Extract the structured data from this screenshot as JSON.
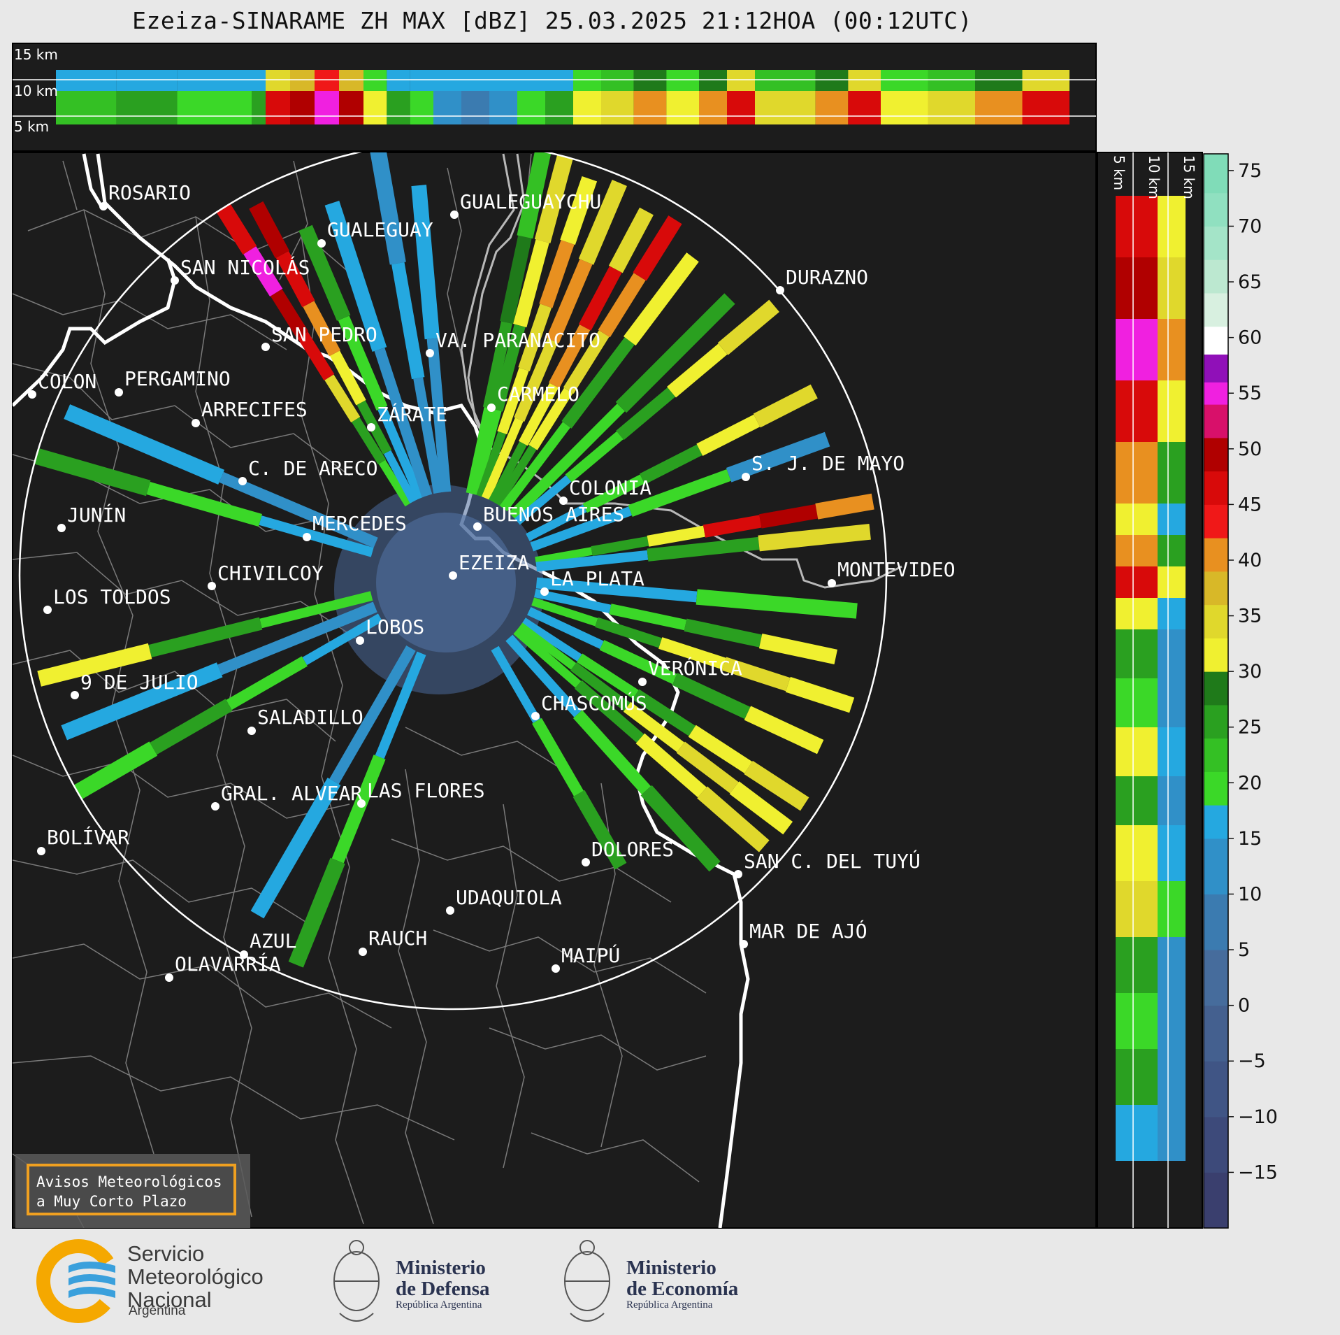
{
  "title": "Ezeiza-SINARAME ZH MAX [dBZ] 25.03.2025 21:12HOA (00:12UTC)",
  "top_panel_labels": [
    "15 km",
    "10 km",
    "5 km"
  ],
  "side_panel_labels": [
    "5 km",
    "10 km",
    "15 km"
  ],
  "colorbar": {
    "unit": "dBZ",
    "ticks": [
      "75",
      "70",
      "65",
      "60",
      "55",
      "50",
      "45",
      "40",
      "35",
      "30",
      "25",
      "20",
      "15",
      "10",
      "5",
      "0",
      "−5",
      "−10",
      "−15"
    ],
    "min": -20,
    "max": 76.5,
    "bands": [
      {
        "from": -20,
        "to": -15,
        "color": "#3a3f6e"
      },
      {
        "from": -15,
        "to": -10,
        "color": "#3d4a7a"
      },
      {
        "from": -10,
        "to": -5,
        "color": "#405585"
      },
      {
        "from": -5,
        "to": 0,
        "color": "#44608f"
      },
      {
        "from": 0,
        "to": 5,
        "color": "#466c9c"
      },
      {
        "from": 5,
        "to": 10,
        "color": "#3b7bb0"
      },
      {
        "from": 10,
        "to": 15,
        "color": "#3090c8"
      },
      {
        "from": 15,
        "to": 18,
        "color": "#25a8e0"
      },
      {
        "from": 18,
        "to": 21,
        "color": "#3bd828"
      },
      {
        "from": 21,
        "to": 24,
        "color": "#34c024"
      },
      {
        "from": 24,
        "to": 27,
        "color": "#2aa020"
      },
      {
        "from": 27,
        "to": 30,
        "color": "#1f7a1a"
      },
      {
        "from": 30,
        "to": 33,
        "color": "#f0f030"
      },
      {
        "from": 33,
        "to": 36,
        "color": "#e0d82c"
      },
      {
        "from": 36,
        "to": 39,
        "color": "#d8b828"
      },
      {
        "from": 39,
        "to": 42,
        "color": "#e89020"
      },
      {
        "from": 42,
        "to": 45,
        "color": "#f01818"
      },
      {
        "from": 45,
        "to": 48,
        "color": "#d80a0a"
      },
      {
        "from": 48,
        "to": 51,
        "color": "#b00000"
      },
      {
        "from": 51,
        "to": 54,
        "color": "#d8106a"
      },
      {
        "from": 54,
        "to": 56,
        "color": "#f020e0"
      },
      {
        "from": 56,
        "to": 58.5,
        "color": "#9010b8"
      },
      {
        "from": 58.5,
        "to": 61,
        "color": "#ffffff"
      },
      {
        "from": 61,
        "to": 64,
        "color": "#d8f0e0"
      },
      {
        "from": 64,
        "to": 67,
        "color": "#bce8d0"
      },
      {
        "from": 67,
        "to": 70,
        "color": "#a4e4c8"
      },
      {
        "from": 70,
        "to": 73,
        "color": "#90e0c0"
      },
      {
        "from": 73,
        "to": 76.5,
        "color": "#80dcb8"
      }
    ]
  },
  "map": {
    "background": "#1c1c1c",
    "range_ring": "#ffffff",
    "radar_site": "EZEIZA",
    "cities": [
      {
        "name": "ROSARIO",
        "dot": [
          148,
          295
        ],
        "label": [
          155,
          285
        ]
      },
      {
        "name": "GUALEGUAYCHU",
        "dot": [
          650,
          307
        ],
        "label": [
          658,
          298
        ]
      },
      {
        "name": "GUALEGUAY",
        "dot": [
          460,
          348
        ],
        "label": [
          468,
          338
        ]
      },
      {
        "name": "SAN NICOLÁS",
        "dot": [
          250,
          401
        ],
        "label": [
          258,
          392
        ]
      },
      {
        "name": "DURAZNO",
        "dot": [
          1116,
          415
        ],
        "label": [
          1124,
          406
        ]
      },
      {
        "name": "SAN PEDRO",
        "dot": [
          380,
          496
        ],
        "label": [
          388,
          488
        ]
      },
      {
        "name": "VA. PARANACITO",
        "dot": [
          615,
          505
        ],
        "label": [
          623,
          496
        ]
      },
      {
        "name": "COLON",
        "dot": [
          46,
          564
        ],
        "label": [
          54,
          555
        ]
      },
      {
        "name": "PERGAMINO",
        "dot": [
          170,
          561
        ],
        "label": [
          178,
          551
        ]
      },
      {
        "name": "CARMELO",
        "dot": [
          703,
          583
        ],
        "label": [
          711,
          573
        ]
      },
      {
        "name": "ARRECIFES",
        "dot": [
          280,
          605
        ],
        "label": [
          288,
          595
        ]
      },
      {
        "name": "ZÁRATE",
        "dot": [
          531,
          611
        ],
        "label": [
          539,
          602
        ]
      },
      {
        "name": "C. DE ARECO",
        "dot": [
          347,
          688
        ],
        "label": [
          355,
          679
        ]
      },
      {
        "name": "S. J. DE MAYO",
        "dot": [
          1067,
          682
        ],
        "label": [
          1075,
          672
        ]
      },
      {
        "name": "COLONIA",
        "dot": [
          806,
          716
        ],
        "label": [
          814,
          707
        ]
      },
      {
        "name": "BUENOS AIRES",
        "dot": [
          683,
          753
        ],
        "label": [
          691,
          745
        ]
      },
      {
        "name": "JUNÍN",
        "dot": [
          88,
          755
        ],
        "label": [
          96,
          746
        ]
      },
      {
        "name": "MERCEDES",
        "dot": [
          439,
          768
        ],
        "label": [
          447,
          758
        ]
      },
      {
        "name": "EZEIZA",
        "dot": [
          648,
          823
        ],
        "label": [
          656,
          814
        ]
      },
      {
        "name": "MONTEVIDEO",
        "dot": [
          1190,
          834
        ],
        "label": [
          1198,
          824
        ]
      },
      {
        "name": "CHIVILCOY",
        "dot": [
          303,
          838
        ],
        "label": [
          311,
          829
        ]
      },
      {
        "name": "LA PLATA",
        "dot": [
          779,
          846
        ],
        "label": [
          787,
          837
        ]
      },
      {
        "name": "LOS TOLDOS",
        "dot": [
          68,
          872
        ],
        "label": [
          76,
          863
        ]
      },
      {
        "name": "LOBOS",
        "dot": [
          515,
          916
        ],
        "label": [
          523,
          906
        ]
      },
      {
        "name": "VERÓNICA",
        "dot": [
          919,
          975
        ],
        "label": [
          927,
          965
        ]
      },
      {
        "name": "9 DE JULIO",
        "dot": [
          107,
          994
        ],
        "label": [
          115,
          985
        ]
      },
      {
        "name": "CHASCOMÚS",
        "dot": [
          766,
          1024
        ],
        "label": [
          774,
          1015
        ]
      },
      {
        "name": "SALADILLO",
        "dot": [
          360,
          1045
        ],
        "label": [
          368,
          1035
        ]
      },
      {
        "name": "GRAL. ALVEAR",
        "dot": [
          308,
          1153
        ],
        "label": [
          316,
          1144
        ]
      },
      {
        "name": "LAS FLORES",
        "dot": [
          517,
          1149
        ],
        "label": [
          525,
          1140
        ]
      },
      {
        "name": "BOLÍVAR",
        "dot": [
          59,
          1217
        ],
        "label": [
          67,
          1207
        ]
      },
      {
        "name": "DOLORES",
        "dot": [
          838,
          1233
        ],
        "label": [
          846,
          1224
        ]
      },
      {
        "name": "SAN C. DEL TUYÚ",
        "dot": [
          1056,
          1250
        ],
        "label": [
          1064,
          1241
        ]
      },
      {
        "name": "UDAQUIOLA",
        "dot": [
          644,
          1302
        ],
        "label": [
          652,
          1293
        ]
      },
      {
        "name": "MAR DE AJÓ",
        "dot": [
          1064,
          1350
        ],
        "label": [
          1072,
          1341
        ]
      },
      {
        "name": "AZUL",
        "dot": [
          349,
          1365
        ],
        "label": [
          357,
          1355
        ]
      },
      {
        "name": "RAUCH",
        "dot": [
          519,
          1361
        ],
        "label": [
          527,
          1351
        ]
      },
      {
        "name": "OLAVARRÍA",
        "dot": [
          242,
          1398
        ],
        "label": [
          250,
          1388
        ]
      },
      {
        "name": "MAIPÚ",
        "dot": [
          795,
          1385
        ],
        "label": [
          803,
          1376
        ]
      }
    ]
  },
  "avisos": {
    "line1": "Avisos Meteorológicos",
    "line2": "a Muy Corto Plazo"
  },
  "logos": {
    "smn": {
      "line1": "Servicio",
      "line2": "Meteorológico",
      "line3": "Nacional",
      "line4": "Argentina"
    },
    "defensa": {
      "line1": "Ministerio",
      "line2": "de Defensa",
      "sub": "República Argentina"
    },
    "economia": {
      "line1": "Ministerio",
      "line2": "de Economía",
      "sub": "República Argentina"
    }
  }
}
